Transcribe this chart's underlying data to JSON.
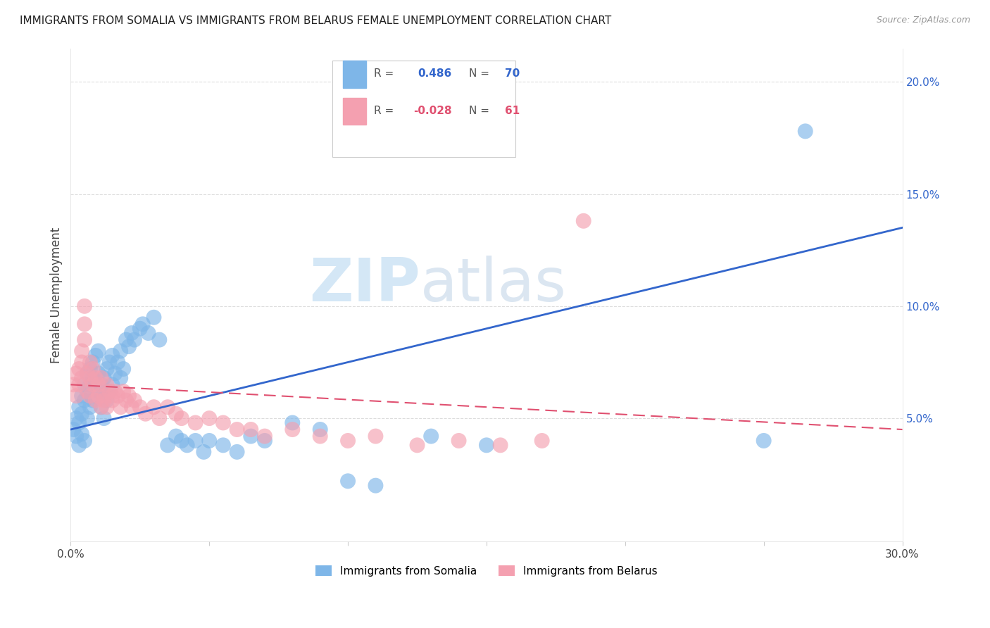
{
  "title": "IMMIGRANTS FROM SOMALIA VS IMMIGRANTS FROM BELARUS FEMALE UNEMPLOYMENT CORRELATION CHART",
  "source": "Source: ZipAtlas.com",
  "ylabel": "Female Unemployment",
  "xlim": [
    0.0,
    0.3
  ],
  "ylim": [
    -0.005,
    0.215
  ],
  "y_ticks_right": [
    0.05,
    0.1,
    0.15,
    0.2
  ],
  "y_tick_labels_right": [
    "5.0%",
    "10.0%",
    "15.0%",
    "20.0%"
  ],
  "somalia_color": "#7EB6E8",
  "belarus_color": "#F4A0B0",
  "somalia_line_color": "#3366CC",
  "belarus_line_color": "#E05070",
  "watermark_zip": "ZIP",
  "watermark_atlas": "atlas",
  "somalia_x": [
    0.001,
    0.002,
    0.002,
    0.003,
    0.003,
    0.003,
    0.004,
    0.004,
    0.004,
    0.005,
    0.005,
    0.005,
    0.006,
    0.006,
    0.006,
    0.007,
    0.007,
    0.007,
    0.008,
    0.008,
    0.008,
    0.009,
    0.009,
    0.01,
    0.01,
    0.01,
    0.011,
    0.011,
    0.012,
    0.012,
    0.012,
    0.013,
    0.013,
    0.014,
    0.014,
    0.015,
    0.015,
    0.016,
    0.017,
    0.018,
    0.018,
    0.019,
    0.02,
    0.021,
    0.022,
    0.023,
    0.025,
    0.026,
    0.028,
    0.03,
    0.032,
    0.035,
    0.038,
    0.04,
    0.042,
    0.045,
    0.048,
    0.05,
    0.055,
    0.06,
    0.065,
    0.07,
    0.08,
    0.09,
    0.1,
    0.11,
    0.13,
    0.15,
    0.25,
    0.265
  ],
  "somalia_y": [
    0.045,
    0.05,
    0.042,
    0.055,
    0.048,
    0.038,
    0.06,
    0.052,
    0.043,
    0.065,
    0.058,
    0.04,
    0.07,
    0.062,
    0.05,
    0.072,
    0.065,
    0.055,
    0.075,
    0.068,
    0.058,
    0.078,
    0.06,
    0.08,
    0.07,
    0.062,
    0.065,
    0.055,
    0.068,
    0.06,
    0.05,
    0.072,
    0.058,
    0.075,
    0.062,
    0.078,
    0.065,
    0.07,
    0.075,
    0.08,
    0.068,
    0.072,
    0.085,
    0.082,
    0.088,
    0.085,
    0.09,
    0.092,
    0.088,
    0.095,
    0.085,
    0.038,
    0.042,
    0.04,
    0.038,
    0.04,
    0.035,
    0.04,
    0.038,
    0.035,
    0.042,
    0.04,
    0.048,
    0.045,
    0.022,
    0.02,
    0.042,
    0.038,
    0.04,
    0.178
  ],
  "belarus_x": [
    0.001,
    0.002,
    0.002,
    0.003,
    0.003,
    0.004,
    0.004,
    0.004,
    0.005,
    0.005,
    0.005,
    0.006,
    0.006,
    0.007,
    0.007,
    0.007,
    0.008,
    0.008,
    0.009,
    0.009,
    0.01,
    0.01,
    0.011,
    0.011,
    0.012,
    0.012,
    0.013,
    0.013,
    0.014,
    0.015,
    0.015,
    0.016,
    0.017,
    0.018,
    0.019,
    0.02,
    0.021,
    0.022,
    0.023,
    0.025,
    0.027,
    0.03,
    0.032,
    0.035,
    0.038,
    0.04,
    0.045,
    0.05,
    0.055,
    0.06,
    0.065,
    0.07,
    0.08,
    0.09,
    0.1,
    0.11,
    0.125,
    0.14,
    0.155,
    0.17,
    0.185
  ],
  "belarus_y": [
    0.065,
    0.07,
    0.06,
    0.072,
    0.065,
    0.075,
    0.068,
    0.08,
    0.085,
    0.092,
    0.1,
    0.062,
    0.07,
    0.068,
    0.075,
    0.06,
    0.065,
    0.072,
    0.068,
    0.058,
    0.065,
    0.06,
    0.055,
    0.068,
    0.06,
    0.058,
    0.065,
    0.055,
    0.062,
    0.06,
    0.058,
    0.062,
    0.06,
    0.055,
    0.062,
    0.058,
    0.06,
    0.055,
    0.058,
    0.055,
    0.052,
    0.055,
    0.05,
    0.055,
    0.052,
    0.05,
    0.048,
    0.05,
    0.048,
    0.045,
    0.045,
    0.042,
    0.045,
    0.042,
    0.04,
    0.042,
    0.038,
    0.04,
    0.038,
    0.04,
    0.138
  ]
}
